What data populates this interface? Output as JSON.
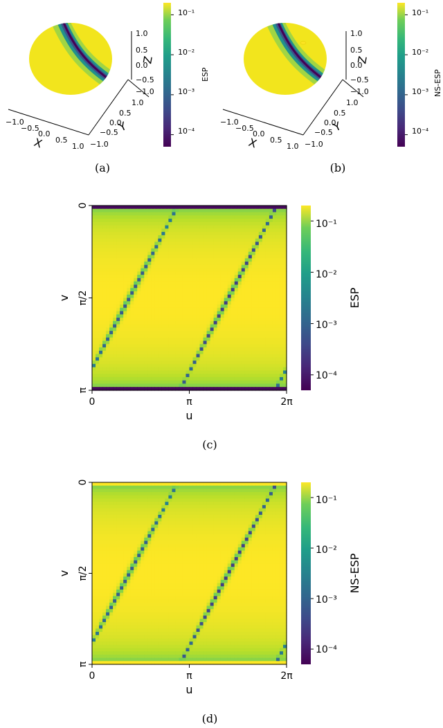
{
  "chart_data": [
    {
      "panel": "a",
      "type": "heatmap",
      "projection": "3d-sphere",
      "caption": "(a)",
      "axes": {
        "x": {
          "label": "X",
          "ticks": [
            "−1.0",
            "−0.5",
            "0.0",
            "0.5",
            "1.0"
          ]
        },
        "y": {
          "label": "Y",
          "ticks": [
            "−1.0",
            "−0.5",
            "0.0",
            "0.5",
            "1.0"
          ]
        },
        "z": {
          "label": "Z",
          "ticks": [
            "−1.0",
            "−0.5",
            "0.0",
            "0.5",
            "1.0"
          ]
        }
      },
      "colorbar": {
        "label": "ESP",
        "scale": "log",
        "colormap": "viridis",
        "range": [
          5e-05,
          0.2
        ],
        "ticks": [
          "10⁻¹",
          "10⁻²",
          "10⁻³",
          "10⁻⁴"
        ]
      }
    },
    {
      "panel": "b",
      "type": "heatmap",
      "projection": "3d-sphere",
      "caption": "(b)",
      "axes": {
        "x": {
          "label": "X",
          "ticks": [
            "−1.0",
            "−0.5",
            "0.0",
            "0.5",
            "1.0"
          ]
        },
        "y": {
          "label": "Y",
          "ticks": [
            "−1.0",
            "−0.5",
            "0.0",
            "0.5",
            "1.0"
          ]
        },
        "z": {
          "label": "Z",
          "ticks": [
            "−1.0",
            "−0.5",
            "0.0",
            "0.5",
            "1.0"
          ]
        }
      },
      "colorbar": {
        "label": "NS-ESP",
        "scale": "log",
        "colormap": "viridis",
        "range": [
          5e-05,
          0.2
        ],
        "ticks": [
          "10⁻¹",
          "10⁻²",
          "10⁻³",
          "10⁻⁴"
        ]
      }
    },
    {
      "panel": "c",
      "type": "heatmap",
      "caption": "(c)",
      "xlabel": "u",
      "ylabel": "v",
      "xlim": [
        0,
        6.2832
      ],
      "ylim": [
        3.1416,
        0
      ],
      "xticks": [
        "0",
        "π",
        "2π"
      ],
      "yticks": [
        "0",
        "π/2",
        "π"
      ],
      "pattern": {
        "valley_u_centers": [
          1.2,
          4.4
        ],
        "valley_slope_du_dv": -1.0,
        "valley_width": 0.09,
        "pole_band_v": 0.08
      },
      "colorbar": {
        "label": "ESP",
        "scale": "log",
        "colormap": "viridis",
        "range": [
          5e-05,
          0.2
        ],
        "ticks": [
          "10⁻¹",
          "10⁻²",
          "10⁻³",
          "10⁻⁴"
        ]
      }
    },
    {
      "panel": "d",
      "type": "heatmap",
      "caption": "(d)",
      "xlabel": "u",
      "ylabel": "v",
      "xlim": [
        0,
        6.2832
      ],
      "ylim": [
        3.1416,
        0
      ],
      "xticks": [
        "0",
        "π",
        "2π"
      ],
      "yticks": [
        "0",
        "π/2",
        "π"
      ],
      "pattern": {
        "valley_u_centers": [
          1.2,
          4.4
        ],
        "valley_slope_du_dv": -1.0,
        "valley_width": 0.09,
        "pole_band_v": 0.04
      },
      "colorbar": {
        "label": "NS-ESP",
        "scale": "log",
        "colormap": "viridis",
        "range": [
          5e-05,
          0.2
        ],
        "ticks": [
          "10⁻¹",
          "10⁻²",
          "10⁻³",
          "10⁻⁴"
        ]
      }
    }
  ]
}
